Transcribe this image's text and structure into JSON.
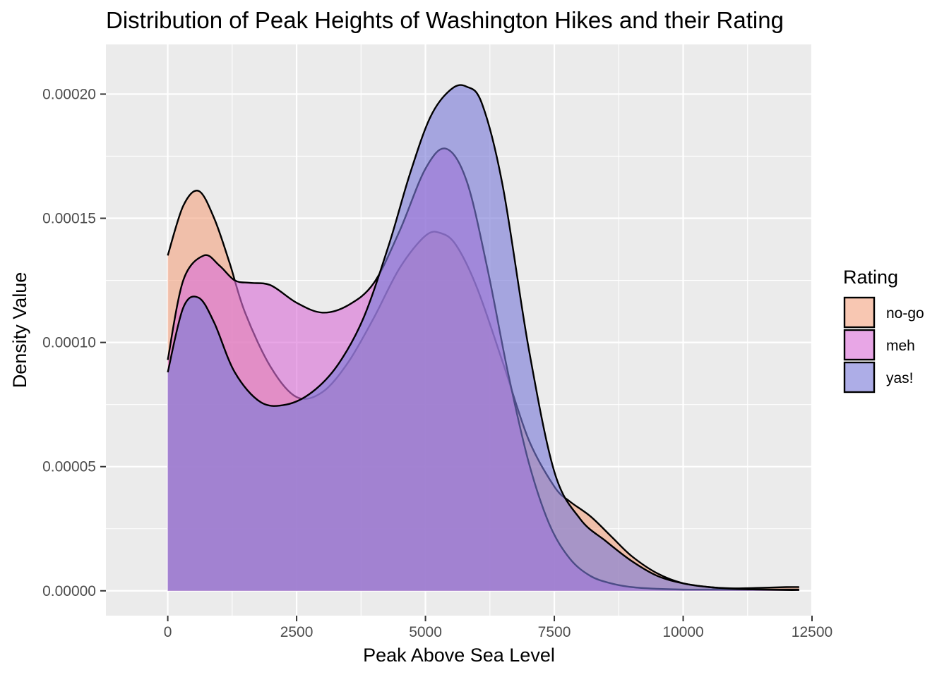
{
  "chart_data": {
    "type": "area",
    "title": "Distribution of Peak Heights of Washington Hikes and their Rating",
    "xlabel": "Peak Above Sea Level",
    "ylabel": "Density Value",
    "xlim": [
      -1200,
      12500
    ],
    "ylim": [
      -1e-05,
      0.00022
    ],
    "x_ticks": [
      {
        "value": 0,
        "label": "0"
      },
      {
        "value": 2500,
        "label": "2500"
      },
      {
        "value": 5000,
        "label": "5000"
      },
      {
        "value": 7500,
        "label": "7500"
      },
      {
        "value": 10000,
        "label": "10000"
      },
      {
        "value": 12500,
        "label": "12500"
      }
    ],
    "y_ticks": [
      {
        "value": 0,
        "label": "0.00000"
      },
      {
        "value": 5e-05,
        "label": "0.00005"
      },
      {
        "value": 0.0001,
        "label": "0.00010"
      },
      {
        "value": 0.00015,
        "label": "0.00015"
      },
      {
        "value": 0.0002,
        "label": "0.00020"
      }
    ],
    "grid": true,
    "panel_background": "#ebebeb",
    "legend": {
      "title": "Rating",
      "position": "right"
    },
    "series": [
      {
        "name": "no-go",
        "fill": "#f4a582",
        "x": [
          0,
          300,
          600,
          900,
          1200,
          1500,
          2000,
          2500,
          3000,
          3500,
          4000,
          4500,
          5000,
          5300,
          5600,
          6000,
          6500,
          7000,
          7500,
          7800,
          8200,
          8600,
          9000,
          9500,
          10000,
          10500,
          11000,
          11500,
          12000,
          12250
        ],
        "y": [
          0.000135,
          0.000155,
          0.000161,
          0.00015,
          0.000132,
          0.000112,
          9e-05,
          7.8e-05,
          8e-05,
          9.2e-05,
          0.00011,
          0.00013,
          0.000143,
          0.000144,
          0.000139,
          0.000122,
          9.2e-05,
          6.1e-05,
          4.2e-05,
          3.6e-05,
          3e-05,
          2.2e-05,
          1.4e-05,
          7e-06,
          3e-06,
          1.5e-06,
          1e-06,
          1.2e-06,
          1.5e-06,
          1.5e-06
        ]
      },
      {
        "name": "meh",
        "fill": "#da70d6",
        "x": [
          0,
          300,
          700,
          1000,
          1300,
          1600,
          2000,
          2500,
          3000,
          3500,
          4000,
          4500,
          5000,
          5400,
          5800,
          6200,
          6600,
          7000,
          7400,
          7800,
          8200,
          8600,
          9000,
          9500,
          10000,
          10500,
          11000,
          11500,
          12000,
          12250
        ],
        "y": [
          9.3e-05,
          0.000125,
          0.000135,
          0.000131,
          0.000125,
          0.000124,
          0.000123,
          0.000116,
          0.000112,
          0.000115,
          0.000124,
          0.000145,
          0.00017,
          0.000178,
          0.000165,
          0.00013,
          8.8e-05,
          5.2e-05,
          2.7e-05,
          1.3e-05,
          6e-06,
          3e-06,
          1.5e-06,
          8e-07,
          5e-07,
          5e-07,
          5e-07,
          5e-07,
          5e-07,
          5e-07
        ]
      },
      {
        "name": "yas!",
        "fill": "#7b7bd9",
        "x": [
          0,
          300,
          600,
          900,
          1300,
          1800,
          2300,
          2800,
          3300,
          3800,
          4300,
          4700,
          5100,
          5500,
          5800,
          6100,
          6500,
          7000,
          7500,
          8000,
          8500,
          9000,
          9500,
          10000,
          10500,
          11000,
          11500,
          12000,
          12250
        ],
        "y": [
          8.8e-05,
          0.000114,
          0.000118,
          0.000108,
          8.8e-05,
          7.6e-05,
          7.5e-05,
          8e-05,
          9.1e-05,
          0.00011,
          0.00014,
          0.000168,
          0.000191,
          0.000202,
          0.000203,
          0.000196,
          0.000163,
          9.8e-05,
          4.8e-05,
          2.9e-05,
          2e-05,
          1.2e-05,
          6e-06,
          3e-06,
          1.5e-06,
          8e-07,
          5e-07,
          3e-07,
          3e-07
        ]
      }
    ]
  }
}
